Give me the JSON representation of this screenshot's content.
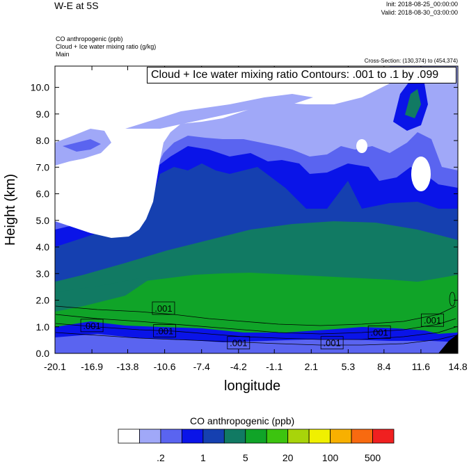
{
  "header": {
    "title": "W-E at 5S",
    "init": "Init: 2018-08-25_00:00:00",
    "valid": "Valid: 2018-08-30_03:00:00",
    "field1": "CO anthropogenic   (ppb)",
    "field2": "Cloud + Ice water mixing ratio   (g/kg)",
    "field3": "Main",
    "cross_section": "Cross-Section: (130,374) to (454,374)"
  },
  "chart_data": {
    "type": "heatmap",
    "title": "W-E at 5S",
    "contour_label": "Cloud + Ice water mixing ratio Contours: .001 to .1 by .099",
    "xlabel": "longitude",
    "ylabel": "Height (km)",
    "xlim": [
      -20.1,
      14.8
    ],
    "ylim": [
      0.0,
      10.8
    ],
    "x_ticks": [
      "-20.1",
      "-16.9",
      "-13.8",
      "-10.6",
      "-7.4",
      "-4.2",
      "-1.1",
      "2.1",
      "5.3",
      "8.4",
      "11.6",
      "14.8"
    ],
    "y_ticks": [
      "0.0",
      "1.0",
      "2.0",
      "3.0",
      "4.0",
      "5.0",
      "6.0",
      "7.0",
      "8.0",
      "9.0",
      "10.0"
    ],
    "contour_labels": [
      ".001",
      ".001",
      ".001",
      ".001",
      ".001",
      ".001",
      ".001"
    ],
    "colorbar": {
      "title": "CO anthropogenic  (ppb)",
      "labels": [
        ".2",
        "1",
        "5",
        "20",
        "100",
        "500"
      ],
      "colors": [
        "#ffffff",
        "#a0a8f8",
        "#5a64f0",
        "#0a14e8",
        "#1540b0",
        "#117a63",
        "#10a428",
        "#3cc40f",
        "#a8d40a",
        "#f0f000",
        "#f8b000",
        "#f86a10",
        "#f02020"
      ]
    },
    "colors": {
      "white": "#ffffff",
      "light_blue": "#a0a8f8",
      "mid_blue": "#5a64f0",
      "blue": "#0a14e8",
      "dark_blue": "#1540b0",
      "teal": "#117a63",
      "green": "#10a428"
    }
  }
}
